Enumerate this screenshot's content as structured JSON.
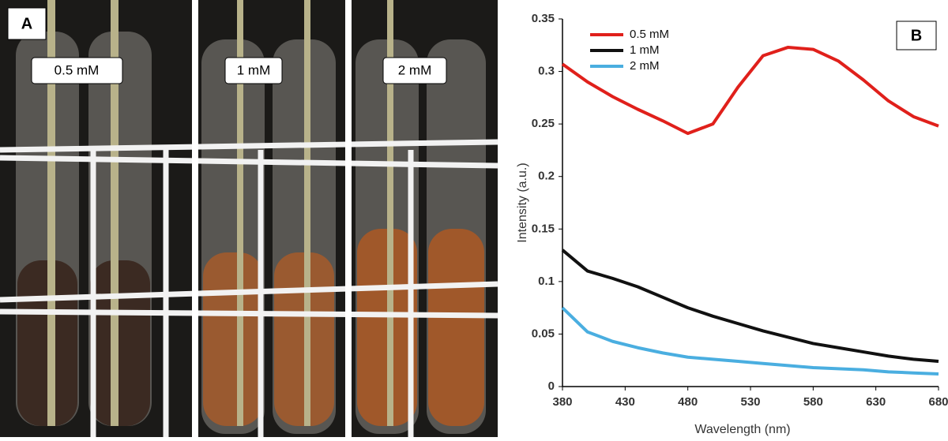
{
  "photo_panel": {
    "label": "A",
    "tube_labels": [
      "0.5 mM",
      "1 mM",
      "2 mM"
    ]
  },
  "chart_data": {
    "type": "line",
    "panel_label": "B",
    "x_label": "Wavelength (nm)",
    "y_label": "Intensity (a.u.)",
    "x": [
      380,
      400,
      420,
      440,
      460,
      480,
      500,
      520,
      540,
      560,
      580,
      600,
      620,
      640,
      660,
      680
    ],
    "series": [
      {
        "name": "0.5 mM",
        "color": "#e0201b",
        "values": [
          0.307,
          0.29,
          0.276,
          0.264,
          0.253,
          0.241,
          0.25,
          0.285,
          0.315,
          0.323,
          0.321,
          0.31,
          0.292,
          0.272,
          0.257,
          0.248
        ]
      },
      {
        "name": "1 mM",
        "color": "#111111",
        "values": [
          0.13,
          0.11,
          0.103,
          0.095,
          0.085,
          0.075,
          0.067,
          0.06,
          0.053,
          0.047,
          0.041,
          0.037,
          0.033,
          0.029,
          0.026,
          0.024
        ]
      },
      {
        "name": "2 mM",
        "color": "#4aaee0",
        "values": [
          0.075,
          0.052,
          0.043,
          0.037,
          0.032,
          0.028,
          0.026,
          0.024,
          0.022,
          0.02,
          0.018,
          0.017,
          0.016,
          0.014,
          0.013,
          0.012
        ]
      }
    ],
    "xlim": [
      380,
      680
    ],
    "xticks": [
      380,
      430,
      480,
      530,
      580,
      630,
      680
    ],
    "ylim": [
      0,
      0.35
    ],
    "yticks": [
      0,
      0.05,
      0.1,
      0.15,
      0.2,
      0.25,
      0.3,
      0.35
    ],
    "legend": "upper-left",
    "grid": false
  }
}
